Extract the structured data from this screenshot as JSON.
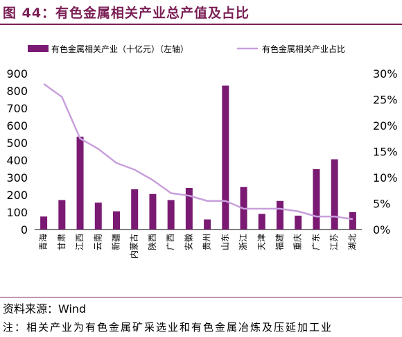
{
  "title": "图 44：有色金属相关产业总产值及占比",
  "source": "资料来源：Wind",
  "note": "注：相关产业为有色金属矿采选业和有色金属冶炼及压延加工业",
  "colors": {
    "bar": "#7a1a73",
    "line": "#c8a0dc",
    "accent": "#7a1f55"
  },
  "chart_data": {
    "type": "bar",
    "categories": [
      "青海",
      "甘肃",
      "江西",
      "云南",
      "新疆",
      "内蒙古",
      "陕西",
      "广西",
      "安徽",
      "贵州",
      "山东",
      "浙江",
      "天津",
      "福建",
      "重庆",
      "广东",
      "江苏",
      "湖北"
    ],
    "series": [
      {
        "name": "有色金属相关产业（十亿元）（左轴）",
        "type": "bar",
        "axis": "left",
        "values": [
          75,
          170,
          535,
          155,
          105,
          232,
          205,
          170,
          240,
          58,
          830,
          245,
          90,
          165,
          80,
          348,
          405,
          100
        ]
      },
      {
        "name": "有色金属相关产业占比",
        "type": "line",
        "axis": "right",
        "values": [
          28,
          25.5,
          17.5,
          15.5,
          12.8,
          11.5,
          9.5,
          7,
          6.5,
          5.5,
          5.5,
          4,
          4,
          4,
          3.5,
          2.5,
          2.5,
          2
        ]
      }
    ],
    "left_axis": {
      "ticks": [
        "0",
        "100",
        "200",
        "300",
        "400",
        "500",
        "600",
        "700",
        "800",
        "900"
      ],
      "ylim": [
        0,
        900
      ]
    },
    "right_axis": {
      "ticks": [
        "0%",
        "5%",
        "10%",
        "15%",
        "20%",
        "25%",
        "30%"
      ],
      "ylim": [
        0,
        30
      ]
    },
    "legend_position": "top",
    "grid": false
  }
}
